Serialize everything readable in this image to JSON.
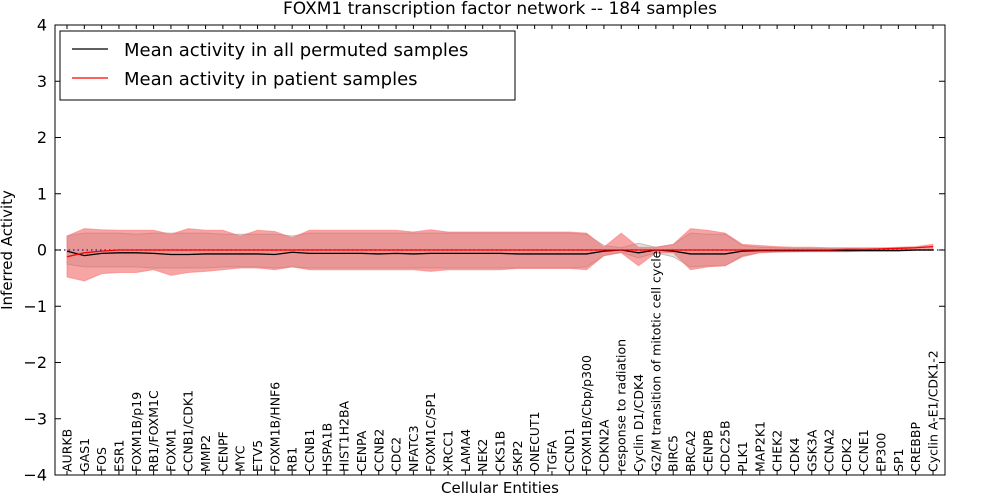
{
  "chart_data": {
    "type": "line",
    "title": "FOXM1 transcription factor network -- 184 samples",
    "xlabel": "Cellular Entities",
    "ylabel": "Inferred Activity",
    "ylim": [
      -4,
      4
    ],
    "yticks": [
      4,
      3,
      2,
      1,
      0,
      -1,
      -2,
      -3,
      -4
    ],
    "ytick_labels": [
      "4",
      "3",
      "2",
      "1",
      "0",
      "−1",
      "−2",
      "−3",
      "−4"
    ],
    "grid": false,
    "legend_position": "top-left",
    "categories": [
      "AURKB",
      "GAS1",
      "FOS",
      "ESR1",
      "FOXM1B/p19",
      "RB1/FOXM1C",
      "FOXM1",
      "CCNB1/CDK1",
      "MMP2",
      "CENPF",
      "MYC",
      "ETV5",
      "FOXM1B/HNF6",
      "RB1",
      "CCNB1",
      "HSPA1B",
      "HIST1H2BA",
      "CENPA",
      "CCNB2",
      "CDC2",
      "NFATC3",
      "FOXM1C/SP1",
      "XRCC1",
      "LAMA4",
      "NEK2",
      "CKS1B",
      "SKP2",
      "ONECUT1",
      "TGFA",
      "CCND1",
      "FOXM1B/Cbp/p300",
      "CDKN2A",
      "response to radiation",
      "Cyclin D1/CDK4",
      "G2/M transition of mitotic cell cycle",
      "BIRC5",
      "BRCA2",
      "CENPB",
      "CDC25B",
      "PLK1",
      "MAP2K1",
      "CHEK2",
      "CDK4",
      "GSK3A",
      "CCNA2",
      "CDK2",
      "CCNE1",
      "EP300",
      "SP1",
      "CREBBP",
      "Cyclin A-E1/CDK1-2"
    ],
    "series": [
      {
        "name": "Mean activity in all permuted samples",
        "color": "#000000",
        "values": [
          -0.02,
          -0.1,
          -0.06,
          -0.05,
          -0.05,
          -0.06,
          -0.08,
          -0.08,
          -0.07,
          -0.07,
          -0.07,
          -0.07,
          -0.08,
          -0.04,
          -0.06,
          -0.06,
          -0.06,
          -0.06,
          -0.07,
          -0.06,
          -0.07,
          -0.06,
          -0.06,
          -0.06,
          -0.06,
          -0.06,
          -0.07,
          -0.07,
          -0.07,
          -0.07,
          -0.07,
          -0.02,
          0.0,
          -0.05,
          0.0,
          -0.02,
          -0.07,
          -0.07,
          -0.07,
          -0.02,
          -0.01,
          -0.01,
          -0.01,
          -0.01,
          -0.01,
          -0.01,
          -0.01,
          -0.01,
          -0.01,
          0.0,
          0.0
        ],
        "band_low": [
          -0.25,
          -0.3,
          -0.3,
          -0.3,
          -0.3,
          -0.32,
          -0.32,
          -0.32,
          -0.32,
          -0.3,
          -0.3,
          -0.3,
          -0.32,
          -0.3,
          -0.32,
          -0.32,
          -0.32,
          -0.32,
          -0.32,
          -0.32,
          -0.32,
          -0.32,
          -0.32,
          -0.32,
          -0.32,
          -0.32,
          -0.32,
          -0.32,
          -0.32,
          -0.32,
          -0.3,
          -0.1,
          -0.04,
          -0.14,
          -0.05,
          -0.12,
          -0.3,
          -0.28,
          -0.28,
          -0.1,
          -0.05,
          -0.04,
          -0.03,
          -0.03,
          -0.03,
          -0.03,
          -0.02,
          -0.02,
          -0.02,
          -0.01,
          -0.01
        ],
        "band_high": [
          0.25,
          0.3,
          0.3,
          0.3,
          0.28,
          0.3,
          0.3,
          0.3,
          0.3,
          0.28,
          0.28,
          0.28,
          0.28,
          0.25,
          0.3,
          0.3,
          0.3,
          0.3,
          0.3,
          0.3,
          0.3,
          0.3,
          0.3,
          0.3,
          0.3,
          0.3,
          0.3,
          0.3,
          0.3,
          0.3,
          0.28,
          0.08,
          0.04,
          0.12,
          0.05,
          0.1,
          0.3,
          0.28,
          0.28,
          0.08,
          0.05,
          0.04,
          0.03,
          0.03,
          0.03,
          0.03,
          0.02,
          0.02,
          0.02,
          0.01,
          0.01
        ]
      },
      {
        "name": "Mean activity in patient samples",
        "color": "#ff0000",
        "values": [
          -0.12,
          -0.05,
          -0.02,
          0.0,
          0.0,
          0.0,
          0.0,
          0.0,
          0.0,
          0.0,
          0.0,
          0.0,
          0.0,
          0.0,
          0.0,
          0.0,
          0.0,
          0.0,
          0.0,
          0.0,
          0.0,
          0.0,
          0.0,
          0.0,
          0.0,
          0.0,
          0.0,
          0.0,
          0.0,
          0.0,
          0.0,
          0.0,
          0.0,
          0.0,
          0.0,
          0.0,
          0.0,
          0.0,
          0.0,
          0.0,
          0.0,
          0.0,
          0.0,
          0.0,
          0.0,
          0.01,
          0.01,
          0.02,
          0.03,
          0.04,
          0.06
        ],
        "band_low": [
          -0.48,
          -0.55,
          -0.42,
          -0.4,
          -0.4,
          -0.35,
          -0.45,
          -0.4,
          -0.38,
          -0.35,
          -0.32,
          -0.32,
          -0.35,
          -0.3,
          -0.35,
          -0.35,
          -0.35,
          -0.35,
          -0.35,
          -0.35,
          -0.35,
          -0.38,
          -0.35,
          -0.35,
          -0.35,
          -0.35,
          -0.33,
          -0.33,
          -0.33,
          -0.33,
          -0.35,
          -0.1,
          -0.05,
          -0.28,
          -0.05,
          -0.05,
          -0.35,
          -0.3,
          -0.28,
          -0.12,
          -0.05,
          -0.03,
          -0.03,
          -0.02,
          -0.02,
          -0.02,
          -0.01,
          -0.01,
          0.0,
          0.0,
          0.0
        ],
        "band_high": [
          0.25,
          0.38,
          0.36,
          0.35,
          0.35,
          0.35,
          0.28,
          0.38,
          0.35,
          0.35,
          0.25,
          0.35,
          0.33,
          0.22,
          0.35,
          0.35,
          0.35,
          0.35,
          0.35,
          0.35,
          0.32,
          0.36,
          0.32,
          0.32,
          0.32,
          0.32,
          0.32,
          0.32,
          0.32,
          0.32,
          0.3,
          0.05,
          0.3,
          0.05,
          0.05,
          0.1,
          0.38,
          0.35,
          0.3,
          0.1,
          0.08,
          0.06,
          0.05,
          0.05,
          0.04,
          0.04,
          0.04,
          0.04,
          0.05,
          0.06,
          0.1
        ]
      }
    ],
    "reference_line": {
      "y": 0,
      "style": "dotted",
      "color": "#1f1f7a"
    }
  }
}
